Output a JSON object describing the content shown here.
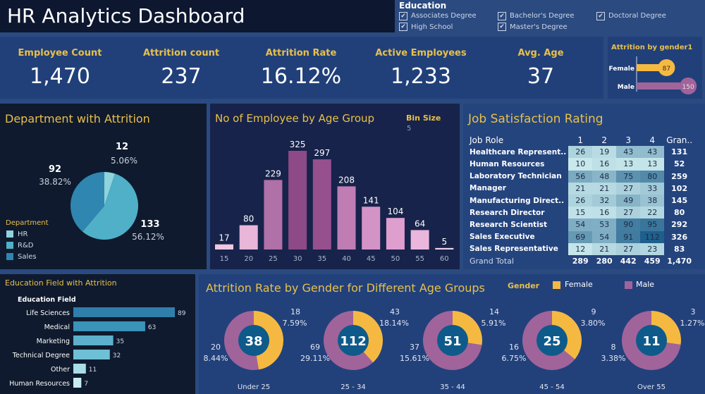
{
  "title": "HR Analytics Dashboard",
  "kpis": [
    {
      "label": "Employee Count",
      "value": "1,470"
    },
    {
      "label": "Attrition count",
      "value": "237"
    },
    {
      "label": "Attrition Rate",
      "value": "16.12%"
    },
    {
      "label": "Active Employees",
      "value": "1,233"
    },
    {
      "label": "Avg. Age",
      "value": "37"
    }
  ],
  "education_filter": {
    "title": "Education",
    "options": [
      "Associates Degree",
      "Bachelor's Degree",
      "Doctoral Degree",
      "High School",
      "Master's Degree"
    ],
    "checked": [
      true,
      true,
      true,
      true,
      true
    ]
  },
  "colors": {
    "female": "#f5b942",
    "male": "#a0649a",
    "hr": "#8fd3dc",
    "rd": "#4fb0c8",
    "sales": "#2f86b0",
    "donut_center": "#0e5a8a",
    "title_gold": "#e8c04a"
  },
  "chart_data": [
    {
      "id": "gender",
      "type": "bar",
      "title": "Attrition by gender1",
      "categories": [
        "Female",
        "Male"
      ],
      "values": [
        87,
        150
      ]
    },
    {
      "id": "dept",
      "type": "pie",
      "title": "Department with Attrition",
      "legend_title": "Department",
      "categories": [
        "HR",
        "R&D",
        "Sales"
      ],
      "values": [
        12,
        133,
        92
      ],
      "labels": [
        "5.06%",
        "56.12%",
        "38.82%"
      ]
    },
    {
      "id": "age",
      "type": "bar",
      "title": "No of Employee by Age Group",
      "bin_label": "Bin Size",
      "bin_value": "5",
      "categories": [
        "15",
        "20",
        "25",
        "30",
        "35",
        "40",
        "45",
        "50",
        "55",
        "60"
      ],
      "values": [
        17,
        80,
        229,
        325,
        297,
        208,
        141,
        104,
        64,
        5
      ]
    },
    {
      "id": "job",
      "type": "heatmap",
      "title": "Job Satisfaction Rating",
      "row_header": "Job Role",
      "columns": [
        "1",
        "2",
        "3",
        "4"
      ],
      "total_header": "Gran..",
      "rows": [
        {
          "role": "Healthcare Represent..",
          "values": [
            26,
            19,
            43,
            43
          ],
          "total": "131"
        },
        {
          "role": "Human Resources",
          "values": [
            10,
            16,
            13,
            13
          ],
          "total": "52"
        },
        {
          "role": "Laboratory Technician",
          "values": [
            56,
            48,
            75,
            80
          ],
          "total": "259"
        },
        {
          "role": "Manager",
          "values": [
            21,
            21,
            27,
            33
          ],
          "total": "102"
        },
        {
          "role": "Manufacturing Direct..",
          "values": [
            26,
            32,
            49,
            38
          ],
          "total": "145"
        },
        {
          "role": "Research Director",
          "values": [
            15,
            16,
            27,
            22
          ],
          "total": "80"
        },
        {
          "role": "Research Scientist",
          "values": [
            54,
            53,
            90,
            95
          ],
          "total": "292"
        },
        {
          "role": "Sales Executive",
          "values": [
            69,
            54,
            91,
            112
          ],
          "total": "326"
        },
        {
          "role": "Sales Representative",
          "values": [
            12,
            21,
            27,
            23
          ],
          "total": "83"
        }
      ],
      "grand_total": {
        "label": "Grand Total",
        "values": [
          "289",
          "280",
          "442",
          "459"
        ],
        "total": "1,470"
      }
    },
    {
      "id": "edf",
      "type": "bar",
      "title": "Education Field with Attrition",
      "axis_label": "Education Field",
      "categories": [
        "Life Sciences",
        "Medical",
        "Marketing",
        "Technical Degree",
        "Other",
        "Human Resources"
      ],
      "values": [
        89,
        63,
        35,
        32,
        11,
        7
      ]
    },
    {
      "id": "donuts",
      "type": "pie",
      "title": "Attrition Rate by Gender  for Different Age Groups",
      "legend_title": "Gender",
      "series_names": [
        "Female",
        "Male"
      ],
      "groups": [
        {
          "label": "Under 25",
          "total": "38",
          "female": 18,
          "female_pct": "7.59%",
          "male": 20,
          "male_pct": "8.44%"
        },
        {
          "label": "25 - 34",
          "total": "112",
          "female": 43,
          "female_pct": "18.14%",
          "male": 69,
          "male_pct": "29.11%"
        },
        {
          "label": "35 - 44",
          "total": "51",
          "female": 14,
          "female_pct": "5.91%",
          "male": 37,
          "male_pct": "15.61%"
        },
        {
          "label": "45 - 54",
          "total": "25",
          "female": 9,
          "female_pct": "3.80%",
          "male": 16,
          "male_pct": "6.75%"
        },
        {
          "label": "Over 55",
          "total": "11",
          "female": 3,
          "female_pct": "1.27%",
          "male": 8,
          "male_pct": "3.38%"
        }
      ]
    }
  ]
}
